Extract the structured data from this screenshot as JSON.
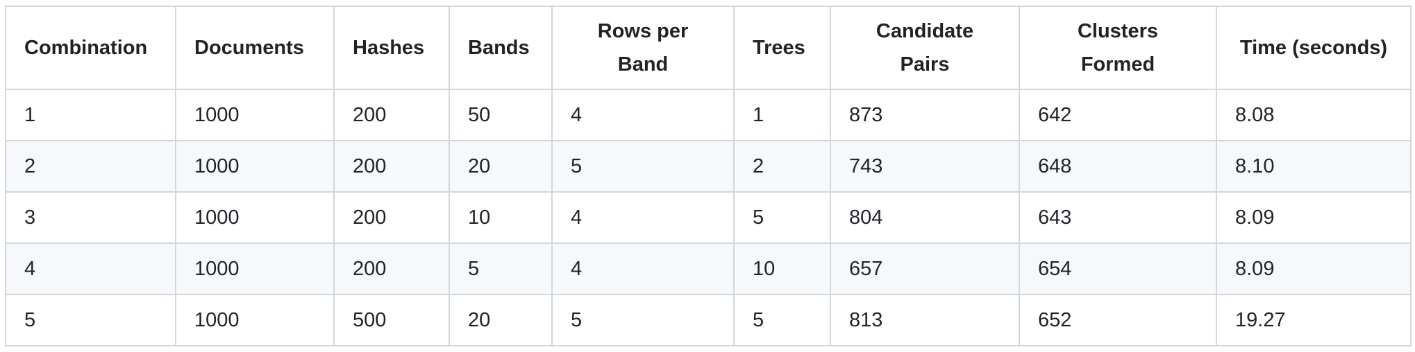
{
  "table": {
    "headers": [
      "Combination",
      "Documents",
      "Hashes",
      "Bands",
      "Rows per Band",
      "Trees",
      "Candidate Pairs",
      "Clusters Formed",
      "Time (seconds)"
    ],
    "rows": [
      [
        "1",
        "1000",
        "200",
        "50",
        "4",
        "1",
        "873",
        "642",
        "8.08"
      ],
      [
        "2",
        "1000",
        "200",
        "20",
        "5",
        "2",
        "743",
        "648",
        "8.10"
      ],
      [
        "3",
        "1000",
        "200",
        "10",
        "4",
        "5",
        "804",
        "643",
        "8.09"
      ],
      [
        "4",
        "1000",
        "200",
        "5",
        "4",
        "10",
        "657",
        "654",
        "8.09"
      ],
      [
        "5",
        "1000",
        "500",
        "20",
        "5",
        "5",
        "813",
        "652",
        "19.27"
      ]
    ]
  }
}
